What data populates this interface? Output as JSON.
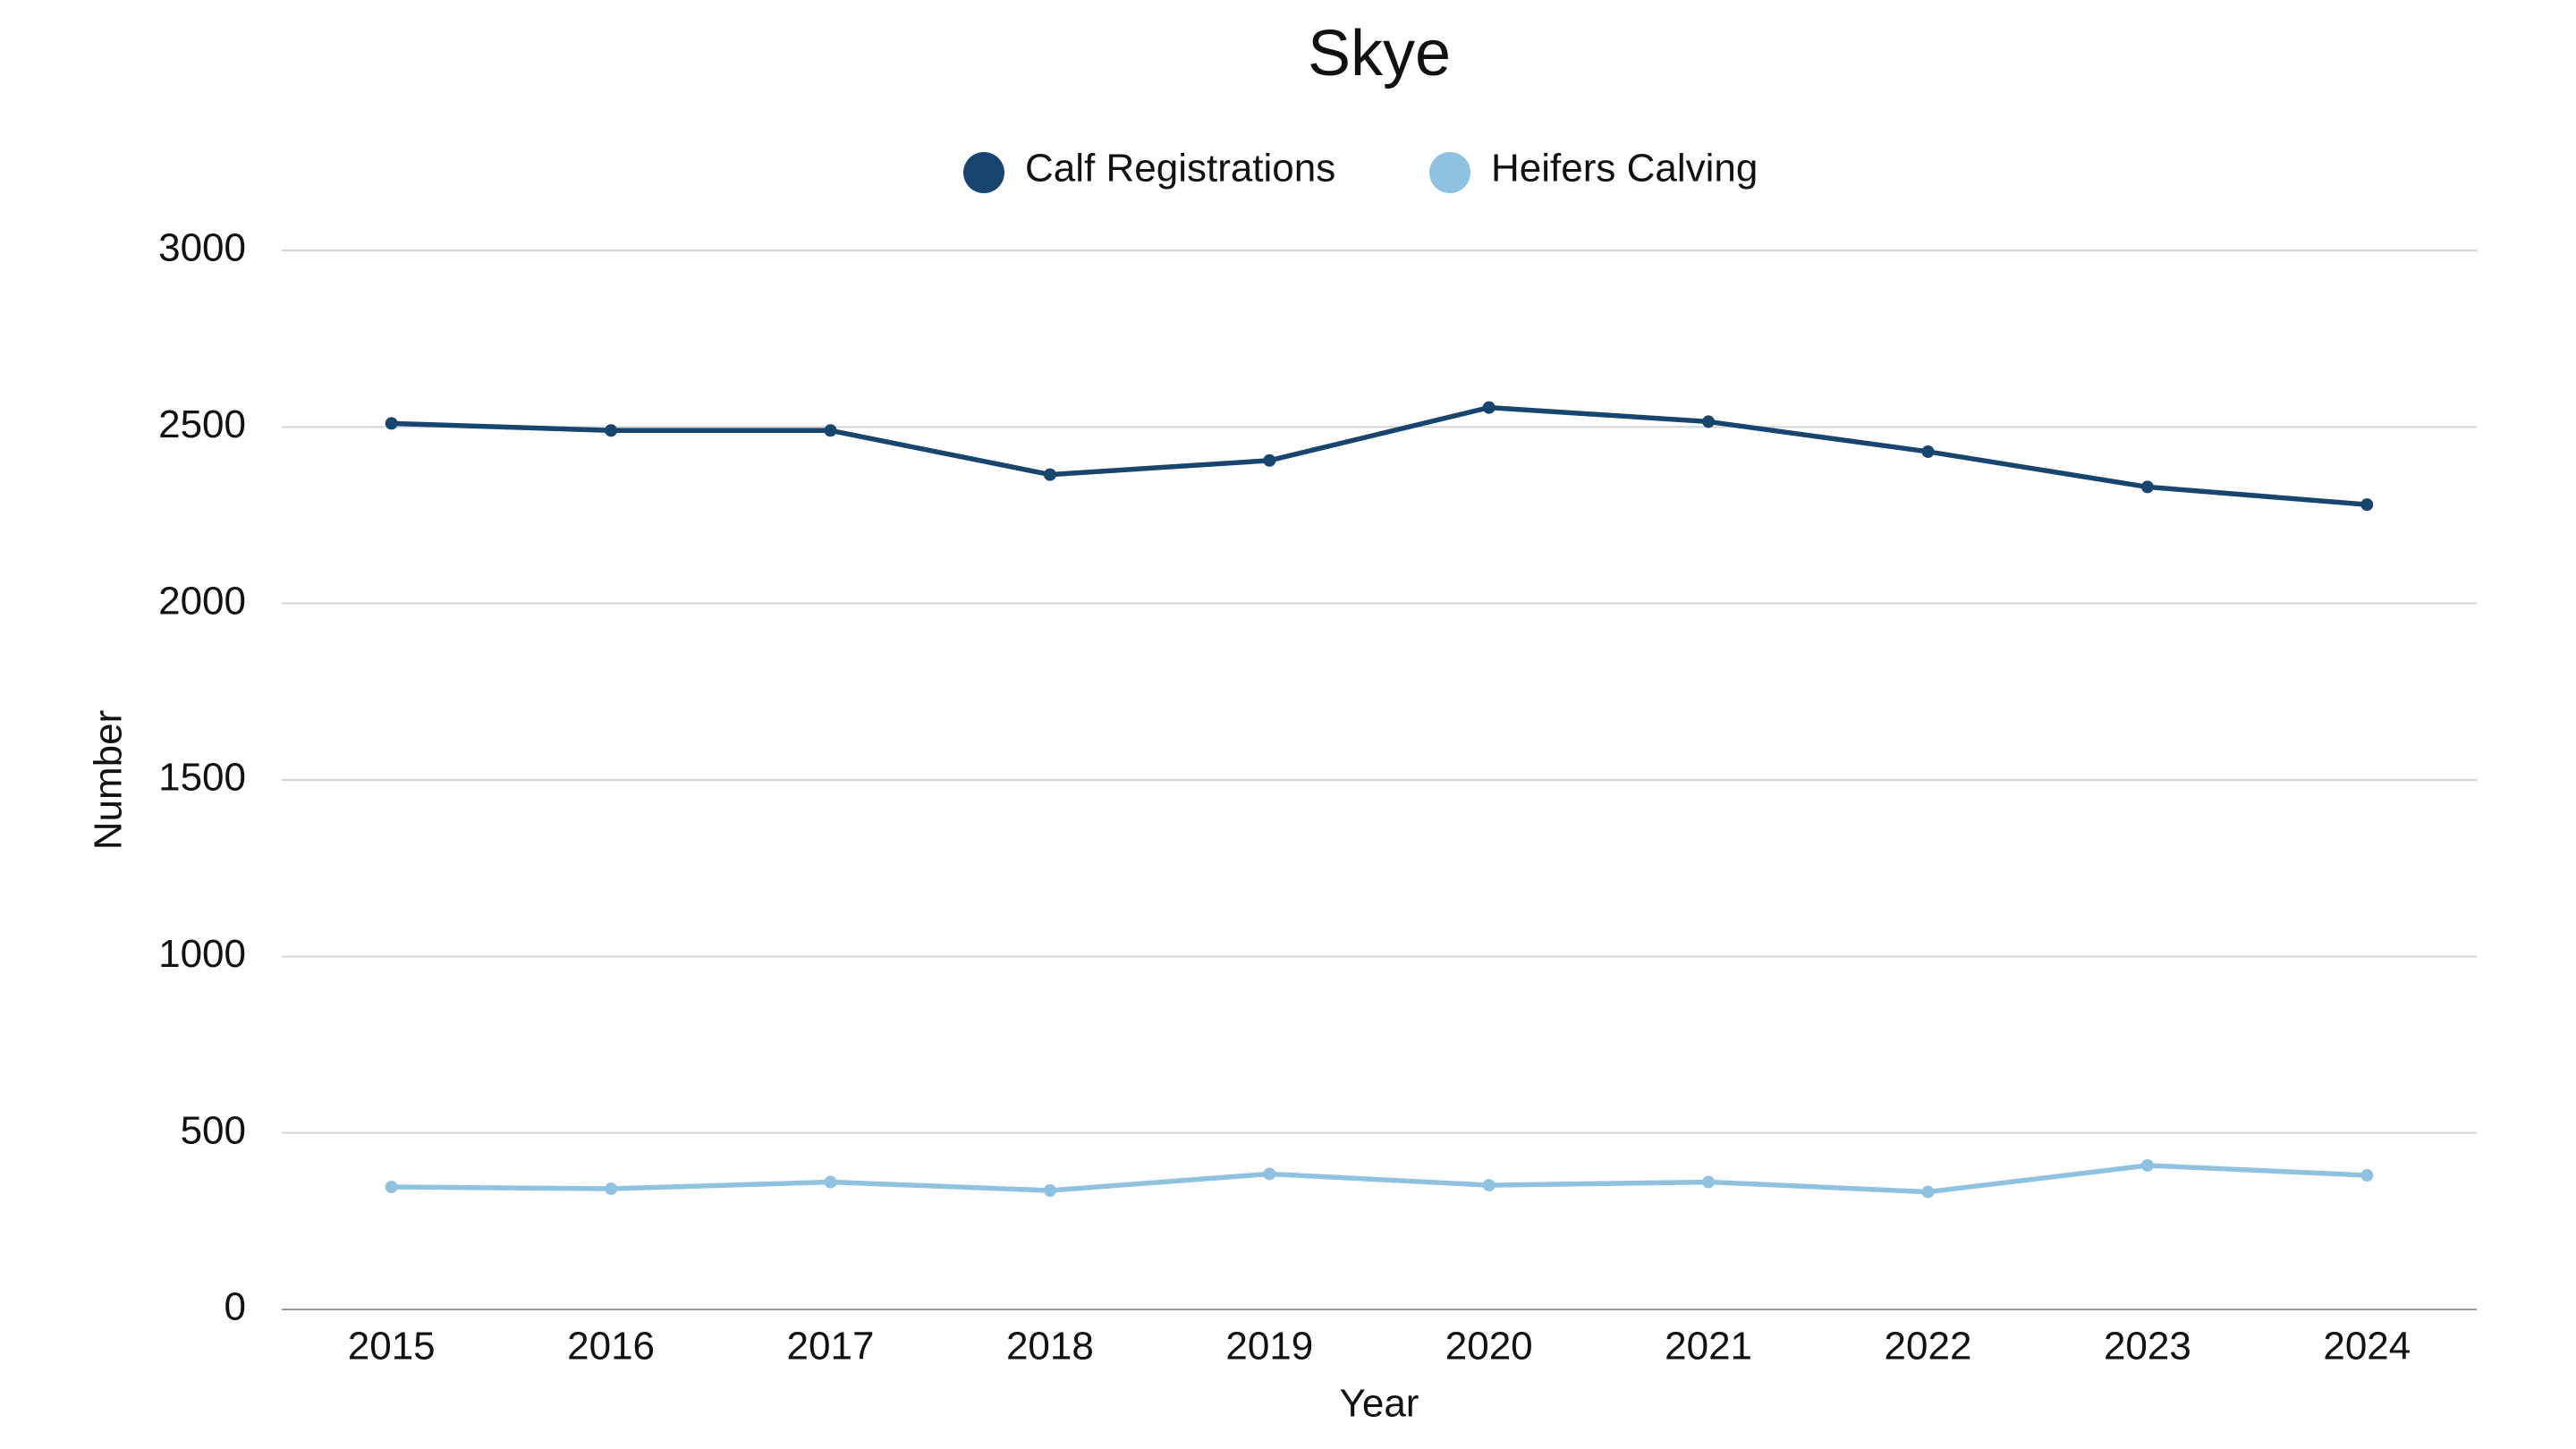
{
  "chart_data": {
    "type": "line",
    "title": "Skye",
    "x_label": "Year",
    "y_label": "Number",
    "categories": [
      "2015",
      "2016",
      "2017",
      "2018",
      "2019",
      "2020",
      "2021",
      "2022",
      "2023",
      "2024"
    ],
    "series": [
      {
        "name": "Calf Registrations",
        "color": "#17456e",
        "values": [
          2510,
          2490,
          2490,
          2365,
          2405,
          2555,
          2515,
          2430,
          2330,
          2280
        ]
      },
      {
        "name": "Heifers Calving",
        "color": "#8fc1e0",
        "values": [
          347,
          342,
          361,
          337,
          384,
          352,
          361,
          333,
          408,
          380
        ]
      }
    ],
    "ylim": [
      0,
      3000
    ],
    "yticks": [
      0,
      500,
      1000,
      1500,
      2000,
      2500,
      3000
    ],
    "grid": true,
    "legend": "top"
  }
}
